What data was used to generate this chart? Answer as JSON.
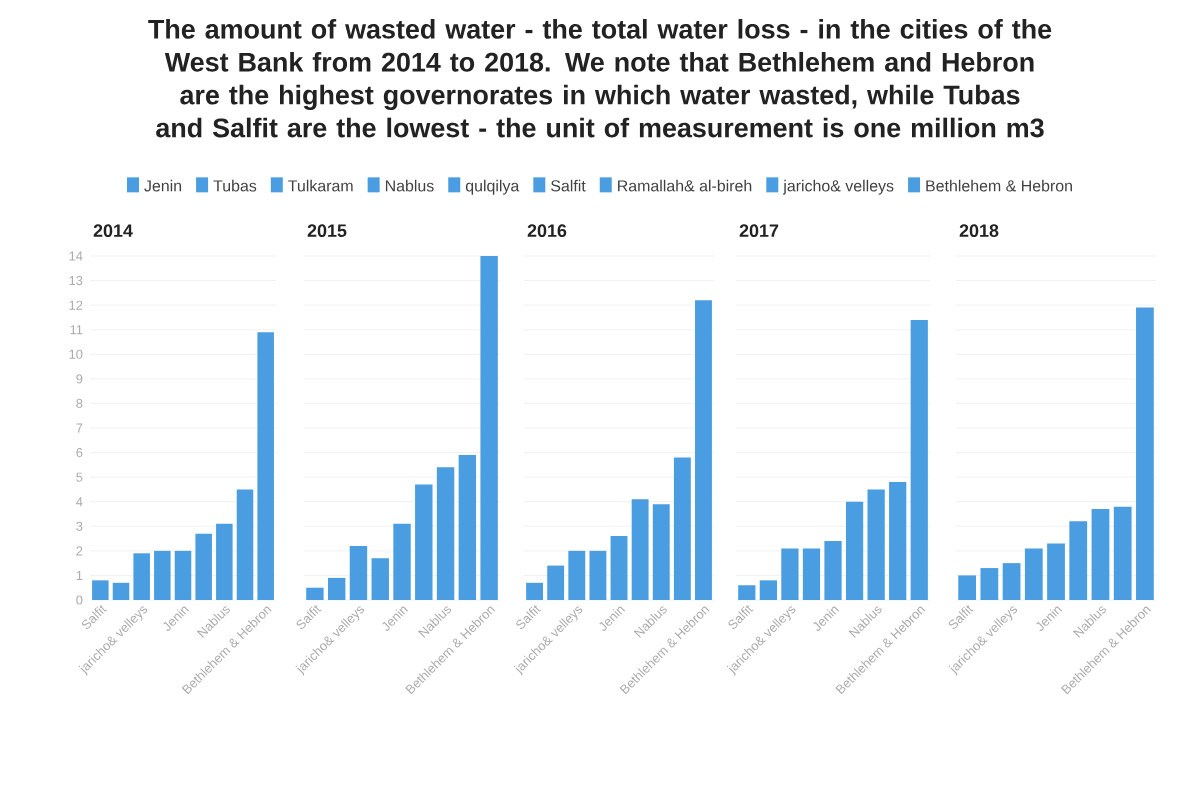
{
  "chart_data": [
    {
      "type": "bar",
      "title": "2014",
      "annotations": [
        "The amount of wasted water - the total water loss - in the cities of the West Bank from 2014 to 2018. We note that Bethlehem and Hebron are the highest governorates in which water wasted, while Tubas and Salfit are the lowest - the unit of measurement is one million m3",
        "Jenin",
        "Tubas",
        "Tulkaram",
        "Nablus",
        "qulqilya",
        "Salfit",
        "Ramallah& al-bireh",
        "jaricho& velleys",
        "Bethlehem & Hebron"
      ],
      "categories": [
        "Salfit",
        null,
        "jaricho& velleys",
        null,
        "Jenin",
        null,
        "Nablus",
        null,
        "Bethlehem & Hebron"
      ],
      "values": [
        0.8,
        0.7,
        1.9,
        2.0,
        2.0,
        2.7,
        3.1,
        4.5,
        10.9
      ],
      "color": "#4a9de0",
      "ylim": [
        0,
        14
      ],
      "yticks": [
        0,
        1,
        2,
        3,
        4,
        5,
        6,
        7,
        8,
        9,
        10,
        11,
        12,
        13,
        14
      ],
      "grid": "y"
    },
    {
      "type": "bar",
      "title": "2015",
      "categories": [
        "Salfit",
        null,
        "jaricho& velleys",
        null,
        "Jenin",
        null,
        "Nablus",
        null,
        "Bethlehem & Hebron"
      ],
      "values": [
        0.5,
        0.9,
        2.2,
        1.7,
        3.1,
        4.7,
        5.4,
        5.9,
        14.0
      ],
      "color": "#4a9de0",
      "ylim": [
        0,
        14
      ],
      "yticks": [
        0,
        1,
        2,
        3,
        4,
        5,
        6,
        7,
        8,
        9,
        10,
        11,
        12,
        13,
        14
      ],
      "grid": "y",
      "tick_labels": "x"
    },
    {
      "type": "bar",
      "title": "2016",
      "categories": [
        "Salfit",
        null,
        "jaricho& velleys",
        null,
        "Jenin",
        null,
        "Nablus",
        null,
        "Bethlehem & Hebron"
      ],
      "values": [
        0.7,
        1.4,
        2.0,
        2.0,
        2.6,
        4.1,
        3.9,
        5.8,
        12.2
      ],
      "color": "#4a9de0",
      "ylim": [
        0,
        14
      ],
      "yticks": [
        0,
        1,
        2,
        3,
        4,
        5,
        6,
        7,
        8,
        9,
        10,
        11,
        12,
        13,
        14
      ],
      "grid": "y",
      "tick_labels": "x"
    },
    {
      "type": "bar",
      "title": "2017",
      "categories": [
        "Salfit",
        null,
        "jaricho& velleys",
        null,
        "Jenin",
        null,
        "Nablus",
        null,
        "Bethlehem & Hebron"
      ],
      "values": [
        0.6,
        0.8,
        2.1,
        2.1,
        2.4,
        4.0,
        4.5,
        4.8,
        11.4
      ],
      "color": "#4a9de0",
      "ylim": [
        0,
        14
      ],
      "yticks": [
        0,
        1,
        2,
        3,
        4,
        5,
        6,
        7,
        8,
        9,
        10,
        11,
        12,
        13,
        14
      ],
      "grid": "y",
      "tick_labels": "x"
    },
    {
      "type": "bar",
      "title": "2018",
      "categories": [
        "Salfit",
        null,
        "jaricho& velleys",
        null,
        "Jenin",
        null,
        "Nablus",
        null,
        "Bethlehem & Hebron"
      ],
      "values": [
        1.0,
        1.3,
        1.5,
        2.1,
        2.3,
        3.2,
        3.7,
        3.8,
        11.9
      ],
      "color": "#4a9de0",
      "ylim": [
        0,
        14
      ],
      "yticks": [
        0,
        1,
        2,
        3,
        4,
        5,
        6,
        7,
        8,
        9,
        10,
        11,
        12,
        13,
        14
      ],
      "grid": "y",
      "tick_labels": "x"
    }
  ]
}
